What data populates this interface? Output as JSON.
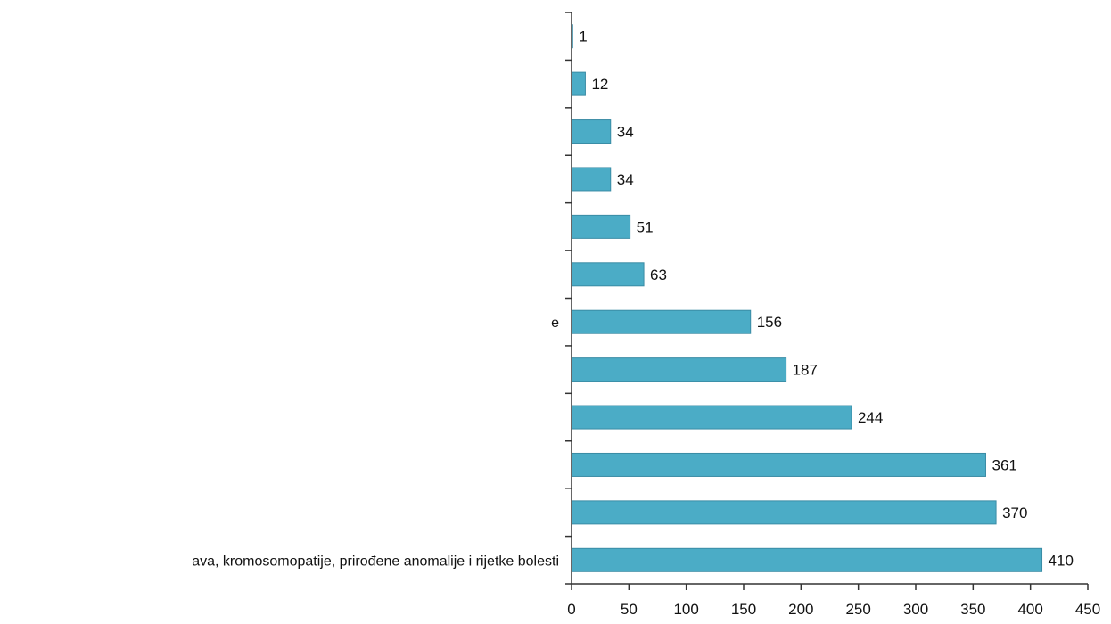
{
  "chart_data": {
    "type": "bar",
    "orientation": "horizontal",
    "categories": [
      "",
      "",
      "",
      "",
      "",
      "",
      "e",
      "",
      "",
      "",
      "",
      "ava, kromosomopatije, prirođene anomalije i rijetke bolesti"
    ],
    "values": [
      1,
      12,
      34,
      34,
      51,
      63,
      156,
      187,
      244,
      361,
      370,
      410
    ],
    "xlim": [
      0,
      450
    ],
    "x_ticks": [
      0,
      50,
      100,
      150,
      200,
      250,
      300,
      350,
      400,
      450
    ],
    "title": "",
    "xlabel": "",
    "ylabel": "",
    "grid": false,
    "legend": "none",
    "bar_color": "#4BACC6",
    "bar_edge_color": "#3A8CA5"
  }
}
